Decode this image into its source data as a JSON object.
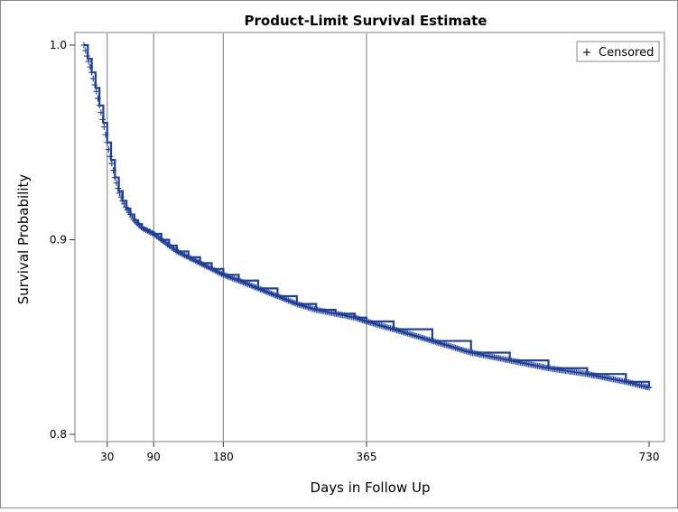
{
  "chart_data": {
    "type": "line",
    "title": "Product-Limit Survival Estimate",
    "xlabel": "Days in Follow Up",
    "ylabel": "Survival Probability",
    "xlim": [
      0,
      730
    ],
    "ylim": [
      0.8,
      1.0
    ],
    "x_ticks": [
      30,
      90,
      180,
      365,
      730
    ],
    "y_ticks": [
      0.8,
      0.9,
      1.0
    ],
    "x_tick_labels": [
      "30",
      "90",
      "180",
      "365",
      "730"
    ],
    "y_tick_labels": [
      "0.8",
      "0.9",
      "1.0"
    ],
    "reference_lines_x": [
      30,
      90,
      180,
      365
    ],
    "grid": false,
    "legend": {
      "placement": "top-right",
      "entries": [
        {
          "symbol": "+",
          "label": "Censored"
        }
      ]
    },
    "series": [
      {
        "color": "#1f3f99",
        "marker": "plus",
        "x": [
          0,
          5,
          10,
          15,
          20,
          25,
          30,
          35,
          40,
          45,
          50,
          55,
          60,
          65,
          70,
          75,
          80,
          85,
          90,
          100,
          110,
          120,
          135,
          150,
          165,
          180,
          200,
          225,
          250,
          275,
          300,
          325,
          350,
          365,
          400,
          450,
          500,
          550,
          600,
          650,
          700,
          730
        ],
        "y": [
          1.0,
          0.993,
          0.986,
          0.978,
          0.969,
          0.96,
          0.95,
          0.941,
          0.932,
          0.925,
          0.92,
          0.916,
          0.913,
          0.91,
          0.908,
          0.906,
          0.905,
          0.904,
          0.903,
          0.9,
          0.897,
          0.894,
          0.891,
          0.888,
          0.885,
          0.882,
          0.879,
          0.875,
          0.871,
          0.867,
          0.864,
          0.862,
          0.86,
          0.858,
          0.854,
          0.848,
          0.842,
          0.838,
          0.834,
          0.831,
          0.827,
          0.824
        ]
      }
    ]
  }
}
